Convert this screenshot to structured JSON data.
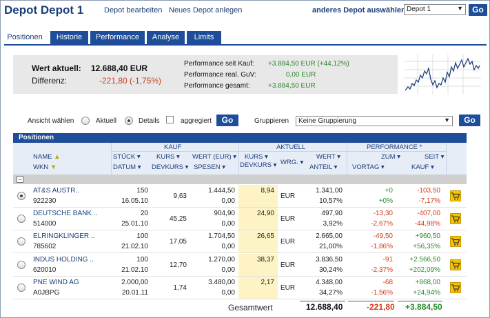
{
  "header": {
    "title": "Depot Depot 1",
    "link_edit": "Depot bearbeiten",
    "link_new": "Neues Depot anlegen",
    "other_label": "anderes Depot auswählen:",
    "depot_selected": "Depot 1",
    "go": "Go"
  },
  "tabs": [
    "Positionen",
    "Historie",
    "Performance",
    "Analyse",
    "Limits"
  ],
  "summary": {
    "wert_label": "Wert aktuell:",
    "wert_value": "12.688,40 EUR",
    "diff_label": "Differenz:",
    "diff_value": "-221,80 (-1,75%)",
    "perf_kauf_label": "Performance seit Kauf:",
    "perf_kauf_value": "+3.884,50 EUR (+44,12%)",
    "perf_guv_label": "Performance real. GuV:",
    "perf_guv_value": "0,00 EUR",
    "perf_ges_label": "Performance gesamt:",
    "perf_ges_value": "+3.884,50 EUR"
  },
  "controls": {
    "ansicht_label": "Ansicht wählen",
    "aktuell": "Aktuell",
    "details": "Details",
    "aggregiert": "aggregiert",
    "go": "Go",
    "gruppieren_label": "Gruppieren",
    "gruppieren_value": "Keine Gruppierung"
  },
  "table": {
    "section_title": "Positionen",
    "group_kauf": "KAUF",
    "group_aktuell": "AKTUELL",
    "group_perf": "PERFORMANCE *",
    "h_name": "NAME",
    "h_wkn": "WKN",
    "h_stueck": "STÜCK",
    "h_datum": "DATUM",
    "h_kurs": "KURS",
    "h_devkurs": "DEVKURS",
    "h_wert_eur": "WERT (EUR)",
    "h_spesen": "SPESEN",
    "h_akurs": "KURS",
    "h_adevkurs": "DEVKURS",
    "h_wrg": "WRG.",
    "h_wert": "WERT",
    "h_anteil": "ANTEIL",
    "h_zum": "ZUM",
    "h_vortag": "VORTAG",
    "h_seit": "SEIT",
    "h_kauf": "KAUF",
    "collapse": "−",
    "rows": [
      {
        "name": "AT&S AUSTR..",
        "wkn": "922230",
        "stueck": "150",
        "datum": "16.05.10",
        "kurs": "9,63",
        "wert": "1.444,50",
        "spesen": "0,00",
        "akurs": "8,94",
        "wrg": "EUR",
        "awert": "1.341,00",
        "anteil": "10,57%",
        "vortag": "+0",
        "vortag_pct": "+0%",
        "seit": "-103,50",
        "seit_pct": "-7,17%",
        "vtc": "green",
        "skc": "red"
      },
      {
        "name": "DEUTSCHE BANK ..",
        "wkn": "514000",
        "stueck": "20",
        "datum": "25.01.10",
        "kurs": "45,25",
        "wert": "904,90",
        "spesen": "0,00",
        "akurs": "24,90",
        "wrg": "EUR",
        "awert": "497,90",
        "anteil": "3,92%",
        "vortag": "-13,30",
        "vortag_pct": "-2,67%",
        "seit": "-407,00",
        "seit_pct": "-44,98%",
        "vtc": "red",
        "skc": "red"
      },
      {
        "name": "ELRINGKLINGER ..",
        "wkn": "785602",
        "stueck": "100",
        "datum": "21.02.10",
        "kurs": "17,05",
        "wert": "1.704,50",
        "spesen": "0,00",
        "akurs": "26,65",
        "wrg": "EUR",
        "awert": "2.665,00",
        "anteil": "21,00%",
        "vortag": "-49,50",
        "vortag_pct": "-1,86%",
        "seit": "+960,50",
        "seit_pct": "+56,35%",
        "vtc": "red",
        "skc": "green"
      },
      {
        "name": "INDUS HOLDING ..",
        "wkn": "620010",
        "stueck": "100",
        "datum": "21.02.10",
        "kurs": "12,70",
        "wert": "1.270,00",
        "spesen": "0,00",
        "akurs": "38,37",
        "wrg": "EUR",
        "awert": "3.836,50",
        "anteil": "30,24%",
        "vortag": "-91",
        "vortag_pct": "-2,37%",
        "seit": "+2.566,50",
        "seit_pct": "+202,09%",
        "vtc": "red",
        "skc": "green"
      },
      {
        "name": "PNE WIND AG",
        "wkn": "A0JBPG",
        "stueck": "2.000,00",
        "datum": "20.01.11",
        "kurs": "1,74",
        "wert": "3.480,00",
        "spesen": "0,00",
        "akurs": "2,17",
        "wrg": "EUR",
        "awert": "4.348,00",
        "anteil": "34,27%",
        "vortag": "-68",
        "vortag_pct": "-1,56%",
        "seit": "+868,00",
        "seit_pct": "+24,94%",
        "vtc": "red",
        "skc": "green"
      }
    ],
    "total_label": "Gesamtwert",
    "total_wert": "12.688,40",
    "total_vortag": "-221,80",
    "total_seit": "+3.884,50"
  },
  "colors": {
    "accent": "#1e4d99",
    "positive": "#2a8a2a",
    "negative": "#d43a1a",
    "highlight": "#fdf3c4"
  }
}
